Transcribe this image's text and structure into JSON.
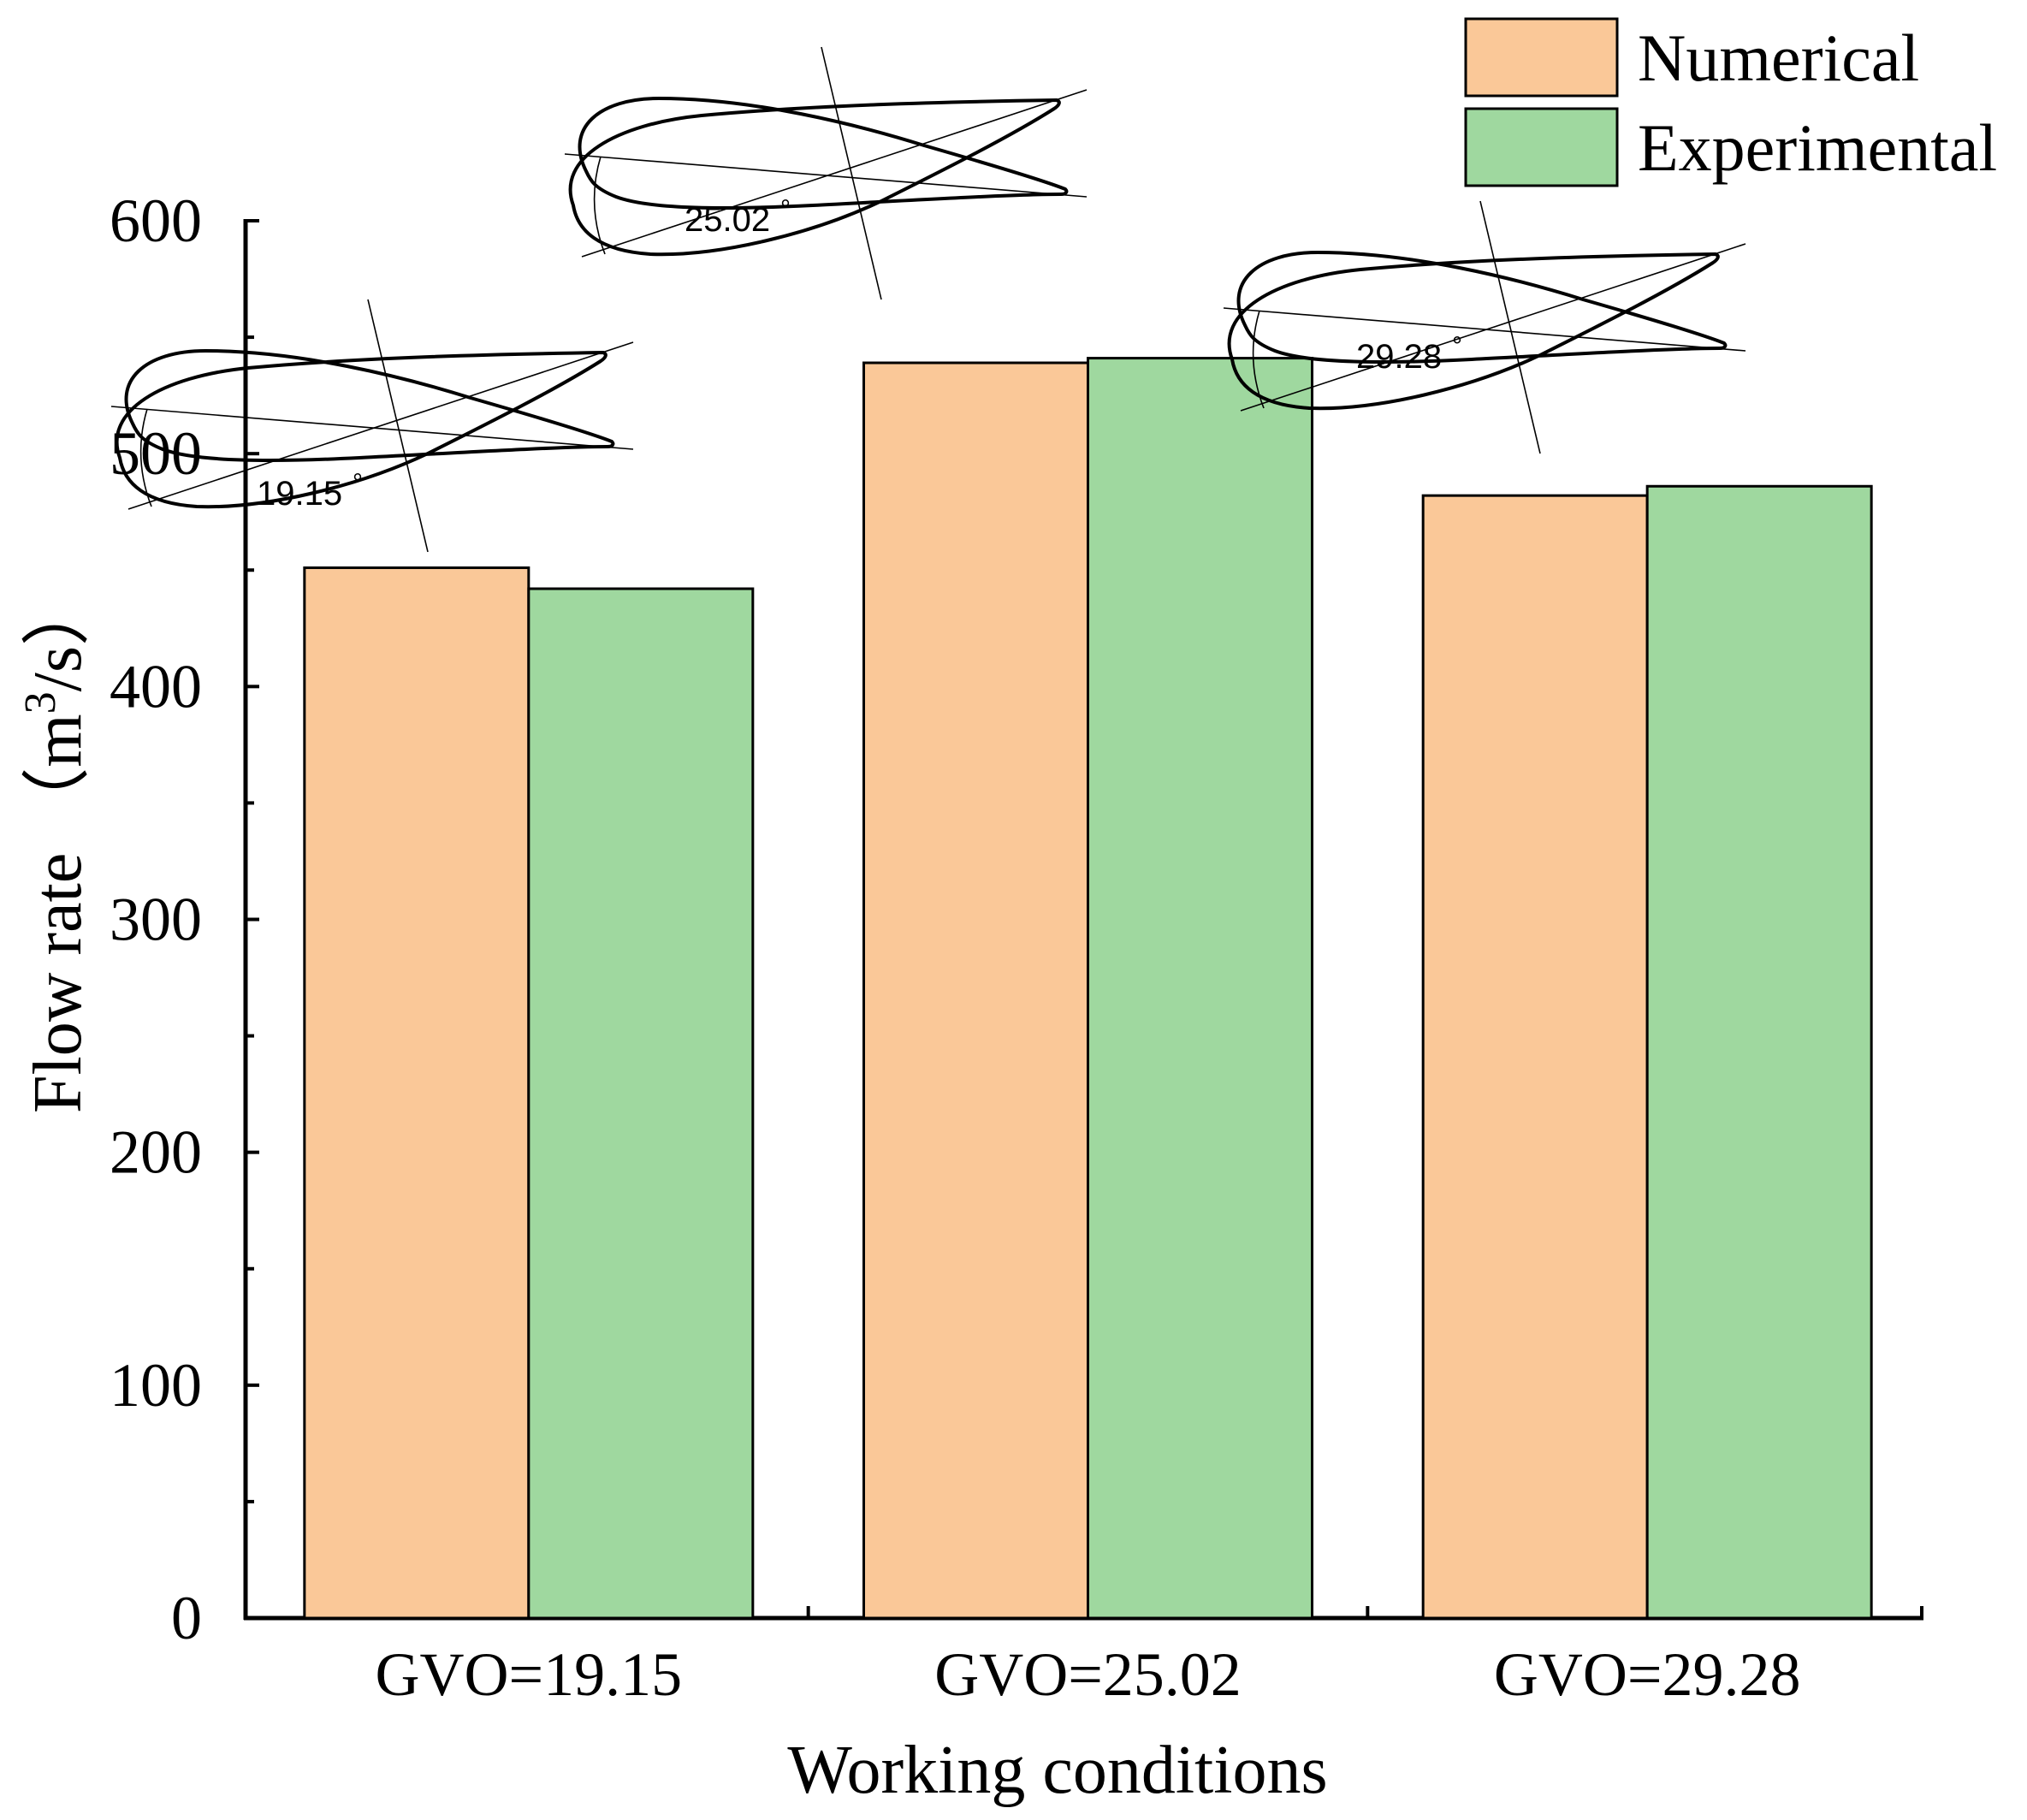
{
  "chart_data": {
    "type": "bar",
    "title": "",
    "xlabel": "Working conditions",
    "ylabel": "Flow rate （m³/s）",
    "ylabel_parts": {
      "main": "Flow rate （m",
      "sup": "3",
      "tail": "/s）"
    },
    "categories": [
      "GVO=19.15",
      "GVO=25.02",
      "GVO=29.28"
    ],
    "series": [
      {
        "name": "Numerical",
        "color": "#FAC898",
        "values": [
          451,
          539,
          482
        ]
      },
      {
        "name": "Experimental",
        "color": "#9FD89F",
        "values": [
          442,
          541,
          486
        ]
      }
    ],
    "ylim": [
      0,
      600
    ],
    "yticks": [
      0,
      100,
      200,
      300,
      400,
      500,
      600
    ],
    "grid": false,
    "legend_position": "top-right",
    "annotations": [
      {
        "category": "GVO=19.15",
        "angle_label": "19.15",
        "degree_symbol": "°"
      },
      {
        "category": "GVO=25.02",
        "angle_label": "25.02",
        "degree_symbol": "°"
      },
      {
        "category": "GVO=29.28",
        "angle_label": "29.28",
        "degree_symbol": "°"
      }
    ]
  }
}
